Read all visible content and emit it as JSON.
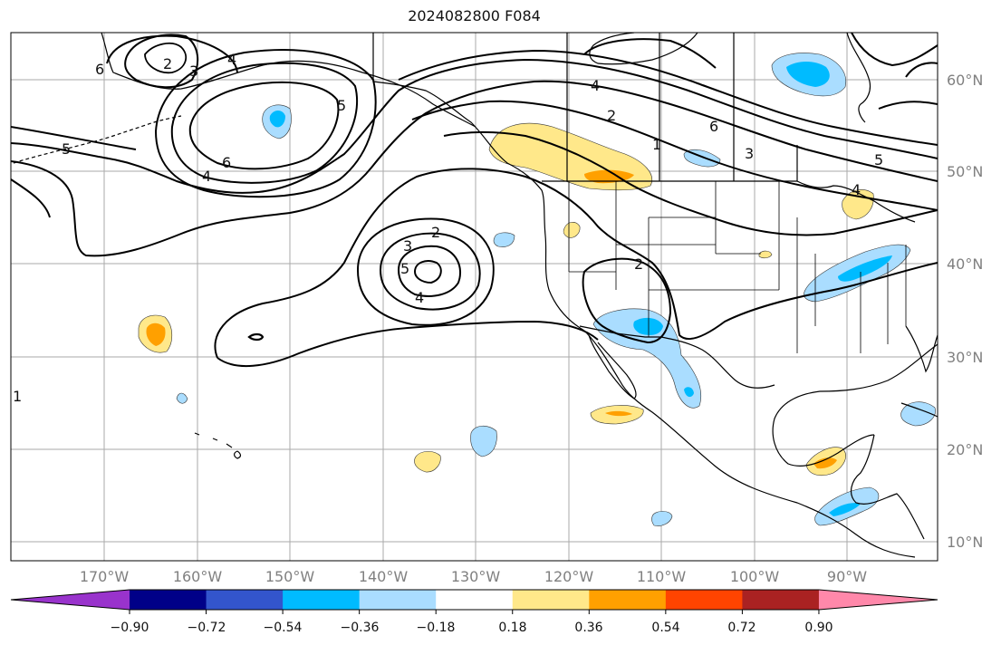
{
  "title": "2024082800 F084",
  "lat_labels": [
    "60°N",
    "50°N",
    "40°N",
    "30°N",
    "20°N",
    "10°N"
  ],
  "lon_labels": [
    "170°W",
    "160°W",
    "150°W",
    "140°W",
    "130°W",
    "120°W",
    "110°W",
    "100°W",
    "90°W"
  ],
  "colorbar": {
    "tick_labels": [
      "−0.90",
      "−0.72",
      "−0.54",
      "−0.36",
      "−0.18",
      "0.18",
      "0.36",
      "0.54",
      "0.72",
      "0.90"
    ],
    "colors": [
      "#9933cc",
      "#000088",
      "#3355cc",
      "#00bbff",
      "#aaddff",
      "#ffffff",
      "#ffe88a",
      "#ffa000",
      "#ff4400",
      "#aa2222",
      "#ff88aa"
    ]
  },
  "contour_labels": [
    "2",
    "3",
    "4",
    "5",
    "6",
    "4",
    "5",
    "2",
    "1",
    "6",
    "3",
    "4",
    "2",
    "3",
    "4",
    "5",
    "4",
    "6",
    "5",
    "2",
    "1"
  ],
  "shading_palette": {
    "neg_light": "#aaddff",
    "neg_mid": "#00bbff",
    "pos_light": "#ffe88a",
    "pos_mid": "#ffa000"
  }
}
